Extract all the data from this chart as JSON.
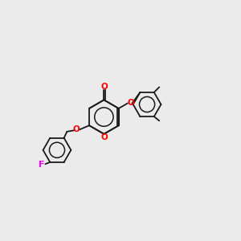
{
  "bg_color": "#ebebeb",
  "bond_color": "#1a1a1a",
  "O_color": "#ff0000",
  "F_color": "#ff00ff",
  "line_width": 1.3,
  "font_size": 7.5,
  "figsize": [
    3.0,
    3.0
  ],
  "dpi": 100,
  "xlim": [
    0,
    10
  ],
  "ylim": [
    0,
    10
  ]
}
